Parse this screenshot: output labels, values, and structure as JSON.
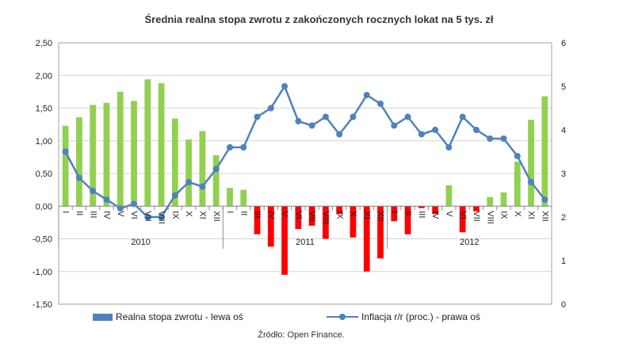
{
  "chart_data": {
    "type": "bar",
    "title": "Średnia realna stopa zwrotu z zakończonych rocznych lokat na 5 tys. zł",
    "source": "Źródło: Open Finance.",
    "months": [
      "I",
      "II",
      "III",
      "IV",
      "V",
      "VI",
      "VII",
      "VIII",
      "IX",
      "X",
      "XI",
      "XII",
      "I",
      "II",
      "III",
      "IV",
      "V",
      "VI",
      "VII",
      "VIII",
      "IX",
      "X",
      "XI",
      "XII",
      "I",
      "II",
      "III",
      "IV",
      "V",
      "VI",
      "VII",
      "VIII",
      "IX",
      "X",
      "XI",
      "XII"
    ],
    "years": [
      "2010",
      "2011",
      "2012"
    ],
    "left_axis": {
      "min": -1.5,
      "max": 2.5,
      "ticks": [
        "-1,50",
        "-1,00",
        "-0,50",
        "0,00",
        "0,50",
        "1,00",
        "1,50",
        "2,00",
        "2,50"
      ]
    },
    "right_axis": {
      "min": 0,
      "max": 6,
      "ticks": [
        "0",
        "1",
        "2",
        "3",
        "4",
        "5",
        "6"
      ]
    },
    "bar_colors": {
      "positive": "#92d050",
      "negative": "#ff0000"
    },
    "line_color": "#4f81bd",
    "series": [
      {
        "name": "Realna stopa zwrotu - lewa oś",
        "axis": "left",
        "values": [
          1.23,
          1.36,
          1.55,
          1.58,
          1.75,
          1.61,
          1.94,
          1.88,
          1.34,
          1.02,
          1.15,
          0.78,
          0.28,
          0.25,
          -0.43,
          -0.62,
          -1.05,
          -0.35,
          -0.3,
          -0.5,
          -0.12,
          -0.48,
          -1.0,
          -0.8,
          -0.23,
          -0.43,
          -0.03,
          -0.12,
          0.32,
          -0.4,
          -0.08,
          0.14,
          0.21,
          0.68,
          1.32,
          1.68
        ]
      },
      {
        "name": "Inflacja r/r (proc.) - prawa oś",
        "axis": "right",
        "values": [
          3.5,
          2.9,
          2.6,
          2.4,
          2.2,
          2.3,
          2.0,
          2.0,
          2.5,
          2.8,
          2.7,
          3.1,
          3.6,
          3.6,
          4.3,
          4.5,
          5.0,
          4.2,
          4.1,
          4.3,
          3.9,
          4.3,
          4.8,
          4.6,
          4.1,
          4.3,
          3.9,
          4.0,
          3.6,
          4.3,
          4.0,
          3.8,
          3.8,
          3.4,
          2.8,
          2.4
        ]
      }
    ]
  }
}
